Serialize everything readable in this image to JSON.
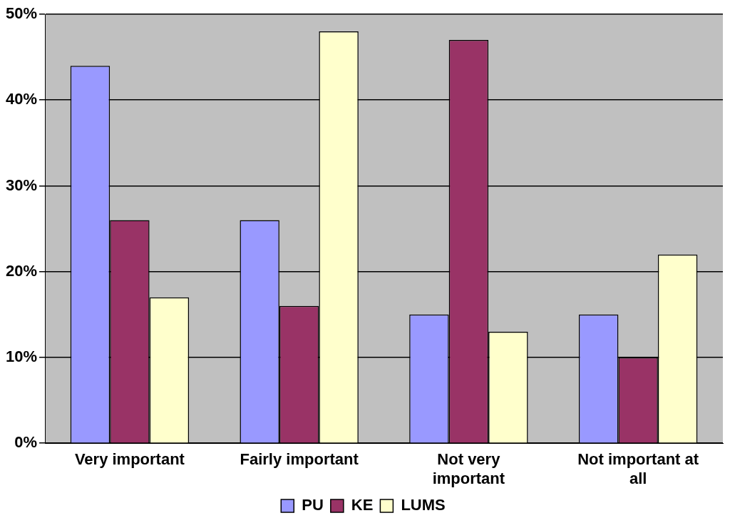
{
  "chart_data": {
    "type": "bar",
    "categories": [
      "Very important",
      "Fairly important",
      "Not very important",
      "Not important at all"
    ],
    "series": [
      {
        "name": "PU",
        "color": "#9999ff",
        "values": [
          44,
          26,
          15,
          15
        ]
      },
      {
        "name": "KE",
        "color": "#993366",
        "values": [
          26,
          16,
          47,
          10
        ]
      },
      {
        "name": "LUMS",
        "color": "#ffffcc",
        "values": [
          17,
          48,
          13,
          22
        ]
      }
    ],
    "ylim": [
      0,
      50
    ],
    "yticks": [
      {
        "value": 0,
        "label": "0%"
      },
      {
        "value": 10,
        "label": "10%"
      },
      {
        "value": 20,
        "label": "20%"
      },
      {
        "value": 30,
        "label": "30%"
      },
      {
        "value": 40,
        "label": "40%"
      },
      {
        "value": 50,
        "label": "50%"
      }
    ],
    "grid": "y",
    "legend": "bottom"
  }
}
